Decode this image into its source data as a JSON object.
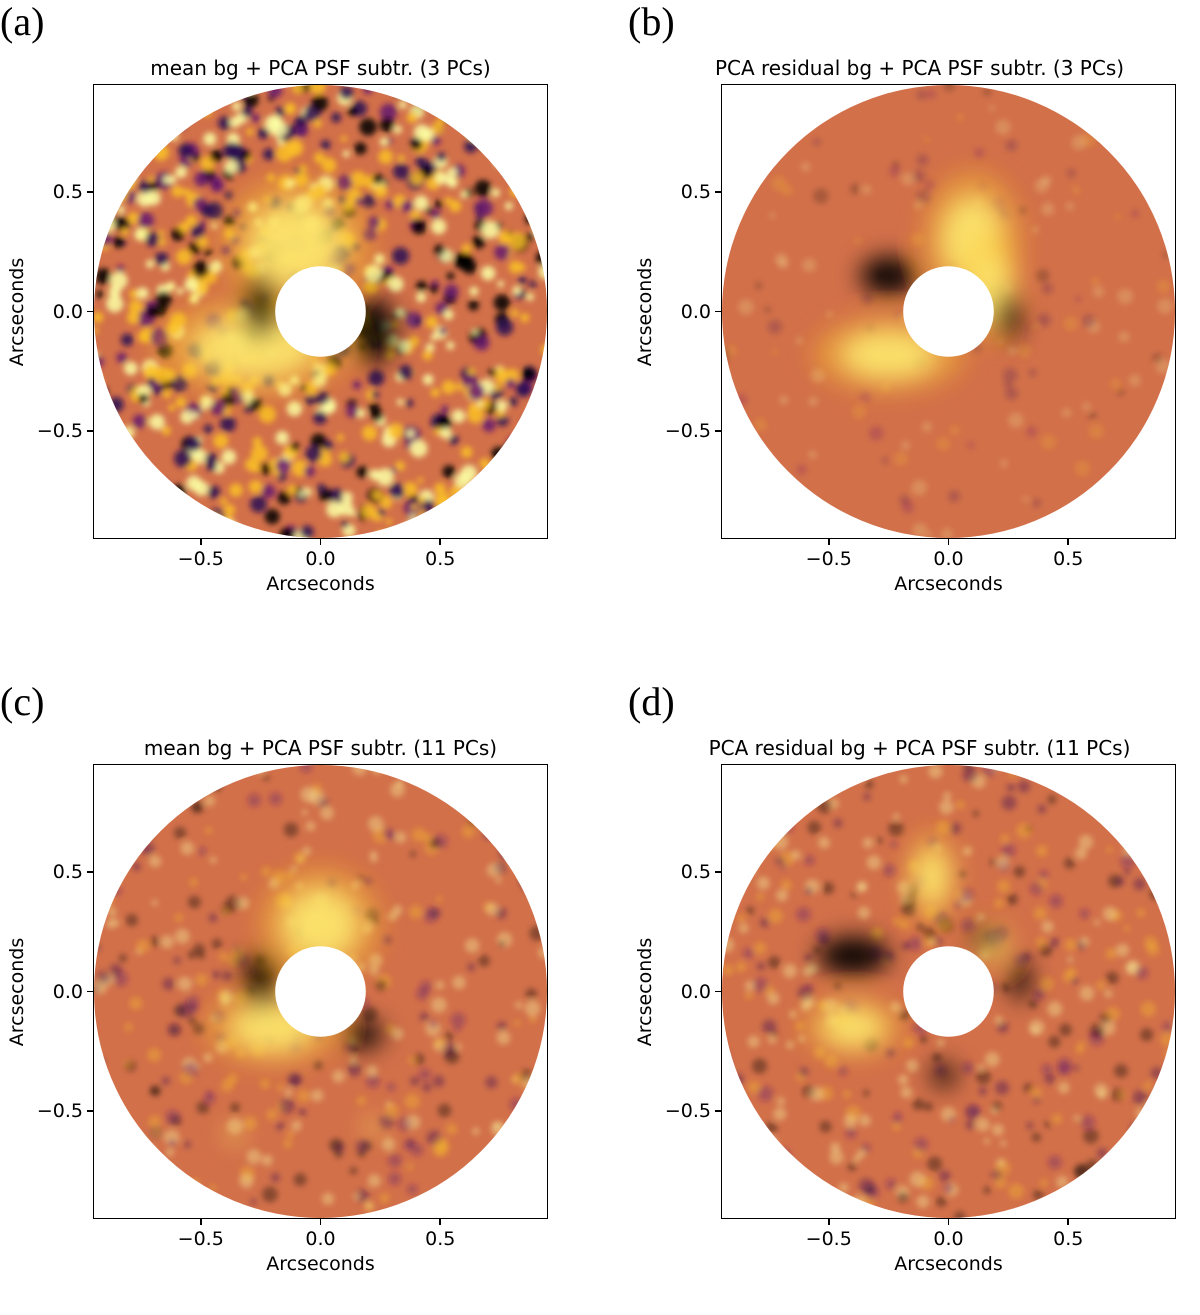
{
  "figure": {
    "colormap": [
      "#000004",
      "#280b54",
      "#65156e",
      "#9f2a63",
      "#d44842",
      "#f57d15",
      "#fac127",
      "#fcffa4"
    ],
    "background_color": "#d2704a",
    "mask_color": "#ffffff"
  },
  "chart_data": [
    {
      "type": "heatmap",
      "panel": "(a)",
      "title": "mean bg + PCA PSF subtr. (3 PCs)",
      "xlabel": "Arcseconds",
      "ylabel": "Arcseconds",
      "xlim": [
        -0.95,
        0.95
      ],
      "ylim": [
        -0.95,
        0.95
      ],
      "xticks": [
        "−0.5",
        "0.0",
        "0.5"
      ],
      "yticks": [
        "0.5",
        "0.0",
        "−0.5"
      ],
      "outer_radius_arcsec": 0.95,
      "inner_mask_radius_arcsec": 0.19,
      "noise_level": "high",
      "features": [
        {
          "kind": "bright",
          "x": -0.1,
          "y": 0.28,
          "rx": 0.2,
          "ry": 0.18
        },
        {
          "kind": "bright",
          "x": -0.28,
          "y": -0.15,
          "rx": 0.26,
          "ry": 0.13
        },
        {
          "kind": "dark",
          "x": -0.25,
          "y": 0.02,
          "rx": 0.07,
          "ry": 0.13
        },
        {
          "kind": "dark",
          "x": 0.22,
          "y": -0.08,
          "rx": 0.09,
          "ry": 0.14
        }
      ]
    },
    {
      "type": "heatmap",
      "panel": "(b)",
      "title": "PCA residual bg + PCA PSF subtr. (3 PCs)",
      "xlabel": "Arcseconds",
      "ylabel": "Arcseconds",
      "xlim": [
        -0.95,
        0.95
      ],
      "ylim": [
        -0.95,
        0.95
      ],
      "xticks": [
        "−0.5",
        "0.0",
        "0.5"
      ],
      "yticks": [
        "0.5",
        "0.0",
        "−0.5"
      ],
      "outer_radius_arcsec": 0.95,
      "inner_mask_radius_arcsec": 0.19,
      "noise_level": "low",
      "features": [
        {
          "kind": "bright",
          "x": 0.1,
          "y": 0.3,
          "rx": 0.13,
          "ry": 0.18
        },
        {
          "kind": "bright",
          "x": 0.18,
          "y": 0.1,
          "rx": 0.08,
          "ry": 0.14
        },
        {
          "kind": "bright",
          "x": -0.25,
          "y": -0.18,
          "rx": 0.2,
          "ry": 0.1
        },
        {
          "kind": "dark",
          "x": -0.25,
          "y": 0.15,
          "rx": 0.12,
          "ry": 0.08
        },
        {
          "kind": "dark",
          "x": 0.25,
          "y": -0.02,
          "rx": 0.05,
          "ry": 0.1
        }
      ]
    },
    {
      "type": "heatmap",
      "panel": "(c)",
      "title": "mean bg + PCA PSF subtr. (11 PCs)",
      "xlabel": "Arcseconds",
      "ylabel": "Arcseconds",
      "xlim": [
        -0.95,
        0.95
      ],
      "ylim": [
        -0.95,
        0.95
      ],
      "xticks": [
        "−0.5",
        "0.0",
        "0.5"
      ],
      "yticks": [
        "0.5",
        "0.0",
        "−0.5"
      ],
      "outer_radius_arcsec": 0.95,
      "inner_mask_radius_arcsec": 0.19,
      "noise_level": "medium",
      "features": [
        {
          "kind": "bright",
          "x": 0.0,
          "y": 0.28,
          "rx": 0.16,
          "ry": 0.15
        },
        {
          "kind": "bright",
          "x": -0.2,
          "y": -0.15,
          "rx": 0.18,
          "ry": 0.1
        },
        {
          "kind": "bright",
          "x": -0.36,
          "y": -0.6,
          "rx": 0.025,
          "ry": 0.025
        },
        {
          "kind": "bright",
          "x": 0.22,
          "y": -0.57,
          "rx": 0.025,
          "ry": 0.025
        },
        {
          "kind": "dark",
          "x": -0.25,
          "y": 0.05,
          "rx": 0.07,
          "ry": 0.12
        },
        {
          "kind": "dark",
          "x": 0.18,
          "y": -0.18,
          "rx": 0.08,
          "ry": 0.06
        }
      ]
    },
    {
      "type": "heatmap",
      "panel": "(d)",
      "title": "PCA residual bg + PCA PSF subtr.  (11 PCs)",
      "xlabel": "Arcseconds",
      "ylabel": "Arcseconds",
      "xlim": [
        -0.95,
        0.95
      ],
      "ylim": [
        -0.95,
        0.95
      ],
      "xticks": [
        "−0.5",
        "0.0",
        "0.5"
      ],
      "yticks": [
        "0.5",
        "0.0",
        "−0.5"
      ],
      "outer_radius_arcsec": 0.95,
      "inner_mask_radius_arcsec": 0.19,
      "noise_level": "medium",
      "features": [
        {
          "kind": "bright",
          "x": -0.07,
          "y": 0.48,
          "rx": 0.07,
          "ry": 0.12
        },
        {
          "kind": "bright",
          "x": -0.4,
          "y": -0.15,
          "rx": 0.13,
          "ry": 0.08
        },
        {
          "kind": "bright",
          "x": 0.18,
          "y": 0.2,
          "rx": 0.05,
          "ry": 0.06
        },
        {
          "kind": "dark",
          "x": -0.4,
          "y": 0.15,
          "rx": 0.15,
          "ry": 0.08
        },
        {
          "kind": "dark",
          "x": 0.15,
          "y": 0.22,
          "rx": 0.05,
          "ry": 0.05
        },
        {
          "kind": "dark",
          "x": 0.3,
          "y": 0.05,
          "rx": 0.04,
          "ry": 0.09
        },
        {
          "kind": "dark",
          "x": -0.02,
          "y": -0.35,
          "rx": 0.05,
          "ry": 0.05
        }
      ]
    }
  ]
}
